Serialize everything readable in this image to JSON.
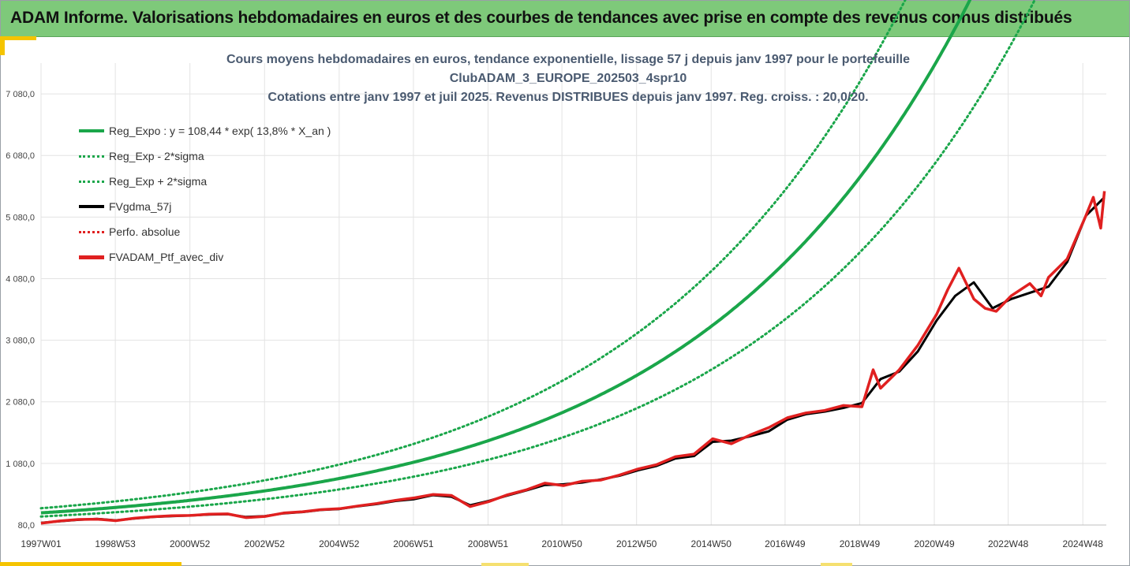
{
  "header": {
    "title": "ADAM Informe. Valorisations hebdomadaires en euros et des courbes de tendances avec prise en compte des revenus connus distribués"
  },
  "colors": {
    "header_bg": "#7ec97a",
    "accent": "#f5c400",
    "reg_green": "#1aa64a",
    "fv_black": "#000000",
    "perfo_red": "#e02020",
    "title_text": "#4a5a70"
  },
  "chart_data": {
    "type": "line",
    "title_lines": [
      "Cours moyens hebdomadaires en euros, tendance exponentielle, lissage 57 j depuis janv 1997 pour le portefeuille",
      "ClubADAM_3_EUROPE_202503_4spr10",
      "Cotations entre janv 1997 et juil 2025. Revenus DISTRIBUES depuis janv 1997. Reg. croiss. : 20,0/20."
    ],
    "x_tick_labels": [
      "1997W01",
      "1998W53",
      "2000W52",
      "2002W52",
      "2004W52",
      "2006W51",
      "2008W51",
      "2010W50",
      "2012W50",
      "2014W50",
      "2016W49",
      "2018W49",
      "2020W49",
      "2022W48",
      "2024W48"
    ],
    "x_tick_years": [
      1997.0,
      1998.99,
      2000.99,
      2002.99,
      2004.99,
      2006.98,
      2008.98,
      2010.96,
      2012.96,
      2014.96,
      2016.94,
      2018.94,
      2020.94,
      2022.92,
      2024.92
    ],
    "x_range": [
      1997.0,
      2025.55
    ],
    "y_ticks": [
      80.0,
      1080.0,
      2080.0,
      3080.0,
      4080.0,
      5080.0,
      6080.0,
      7080.0
    ],
    "y_tick_labels": [
      "80,0",
      "1 080,0",
      "2 080,0",
      "3 080,0",
      "4 080,0",
      "5 080,0",
      "6 080,0",
      "7 080,0"
    ],
    "ylim": [
      80.0,
      7580.0
    ],
    "legend_position": "top-left",
    "grid": true,
    "regression": {
      "label": "Reg_Expo : y = 108,44 * exp( 13,8% *  X_an )",
      "a": 108.44,
      "rate": 0.138,
      "sigma_band_factor": 0.787
    },
    "series": [
      {
        "name": "Reg_Expo : y = 108,44 * exp( 13,8% *  X_an )",
        "style": "solid",
        "color": "#1aa64a",
        "kind": "regression"
      },
      {
        "name": "Reg_Exp - 2*sigma",
        "style": "dotted",
        "color": "#1aa64a",
        "kind": "lower_band"
      },
      {
        "name": "Reg_Exp + 2*sigma",
        "style": "dotted",
        "color": "#1aa64a",
        "kind": "upper_band"
      },
      {
        "name": "FVgdma_57j",
        "style": "solid",
        "color": "#000000",
        "kind": "data",
        "x": [
          1997.0,
          1997.5,
          1998.0,
          1998.5,
          1999.0,
          1999.5,
          2000.0,
          2000.5,
          2001.0,
          2001.5,
          2002.0,
          2002.5,
          2003.0,
          2003.5,
          2004.0,
          2004.5,
          2005.0,
          2005.5,
          2006.0,
          2006.5,
          2007.0,
          2007.5,
          2008.0,
          2008.5,
          2009.0,
          2009.5,
          2010.0,
          2010.5,
          2011.0,
          2011.5,
          2012.0,
          2012.5,
          2013.0,
          2013.5,
          2014.0,
          2014.5,
          2015.0,
          2015.5,
          2016.0,
          2016.5,
          2017.0,
          2017.5,
          2018.0,
          2018.5,
          2019.0,
          2019.5,
          2020.0,
          2020.5,
          2021.0,
          2021.5,
          2022.0,
          2022.5,
          2023.0,
          2023.5,
          2024.0,
          2024.5,
          2025.0,
          2025.5
        ],
        "y": [
          115,
          140,
          165,
          180,
          155,
          185,
          210,
          225,
          235,
          250,
          255,
          210,
          225,
          270,
          290,
          325,
          340,
          385,
          420,
          470,
          500,
          565,
          540,
          400,
          470,
          560,
          640,
          730,
          740,
          770,
          820,
          880,
          970,
          1040,
          1160,
          1200,
          1430,
          1450,
          1520,
          1600,
          1790,
          1880,
          1920,
          1980,
          2060,
          2450,
          2570,
          2900,
          3400,
          3800,
          4020,
          3600,
          3750,
          3850,
          3950,
          4350,
          5100,
          5400
        ]
      },
      {
        "name": "Perfo. absolue",
        "style": "dotted",
        "color": "#e02020",
        "kind": "data_same"
      },
      {
        "name": "FVADAM_Ptf_avec_div",
        "style": "solid-thick",
        "color": "#e02020",
        "kind": "data",
        "x": [
          1997.0,
          1997.5,
          1998.0,
          1998.5,
          1999.0,
          1999.5,
          2000.0,
          2000.5,
          2001.0,
          2001.5,
          2002.0,
          2002.5,
          2003.0,
          2003.5,
          2004.0,
          2004.5,
          2005.0,
          2005.5,
          2006.0,
          2006.5,
          2007.0,
          2007.5,
          2008.0,
          2008.5,
          2009.0,
          2009.5,
          2010.0,
          2010.5,
          2011.0,
          2011.5,
          2012.0,
          2012.5,
          2013.0,
          2013.5,
          2014.0,
          2014.5,
          2015.0,
          2015.5,
          2016.0,
          2016.5,
          2017.0,
          2017.5,
          2018.0,
          2018.5,
          2019.0,
          2019.3,
          2019.5,
          2020.0,
          2020.5,
          2021.0,
          2021.3,
          2021.6,
          2022.0,
          2022.3,
          2022.6,
          2023.0,
          2023.5,
          2023.8,
          2024.0,
          2024.5,
          2025.0,
          2025.2,
          2025.4,
          2025.5
        ],
        "y": [
          110,
          145,
          170,
          175,
          150,
          190,
          215,
          230,
          235,
          255,
          260,
          200,
          220,
          275,
          295,
          330,
          345,
          390,
          430,
          480,
          520,
          575,
          560,
          380,
          460,
          570,
          650,
          760,
          720,
          790,
          810,
          890,
          990,
          1060,
          1190,
          1230,
          1480,
          1400,
          1540,
          1660,
          1820,
          1900,
          1940,
          2020,
          2000,
          2600,
          2300,
          2600,
          3000,
          3500,
          3900,
          4250,
          3750,
          3600,
          3550,
          3800,
          4000,
          3800,
          4100,
          4400,
          5100,
          5400,
          4900,
          5500
        ]
      }
    ]
  }
}
